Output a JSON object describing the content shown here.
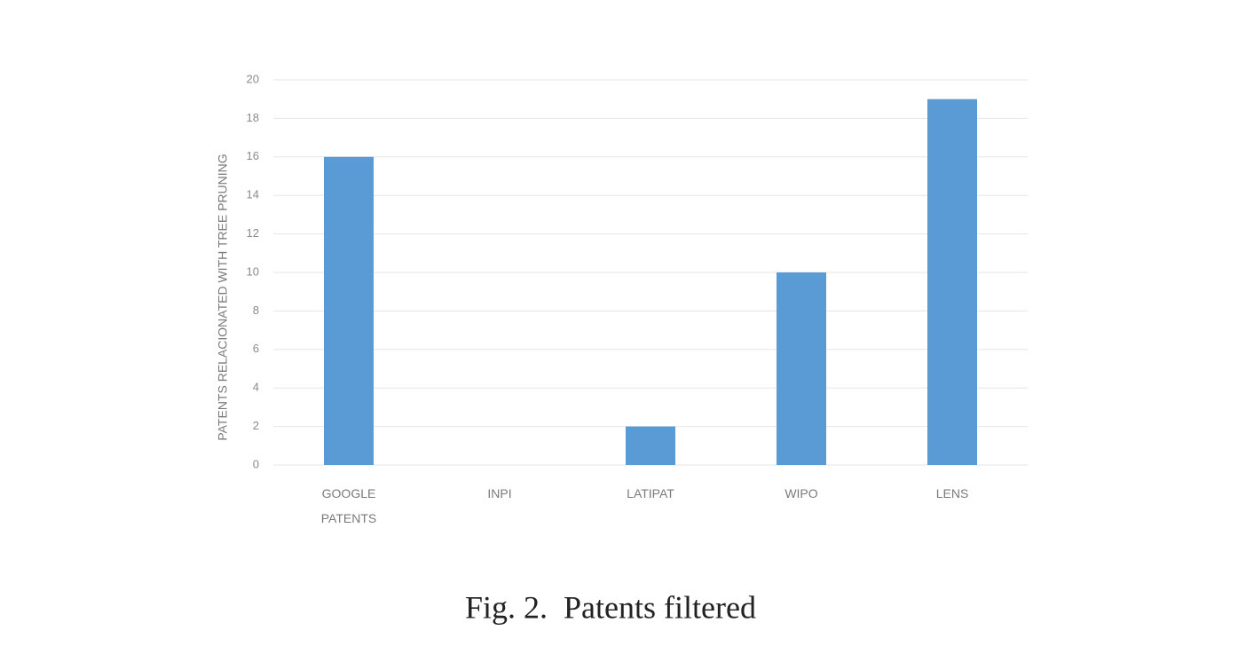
{
  "chart_data": {
    "type": "bar",
    "ylabel": "PATENTS RELACIONATED WITH TREE PRUNING",
    "caption": "Fig. 2.  Patents filtered",
    "categories": [
      "GOOGLE PATENTS",
      "INPI",
      "LATIPAT",
      "WIPO",
      "LENS"
    ],
    "values": [
      16,
      0,
      2,
      10,
      19
    ],
    "color": "#5b9bd5",
    "ylim": [
      0,
      20
    ],
    "yticks": [
      0,
      2,
      4,
      6,
      8,
      10,
      12,
      14,
      16,
      18,
      20
    ],
    "grid": true
  }
}
